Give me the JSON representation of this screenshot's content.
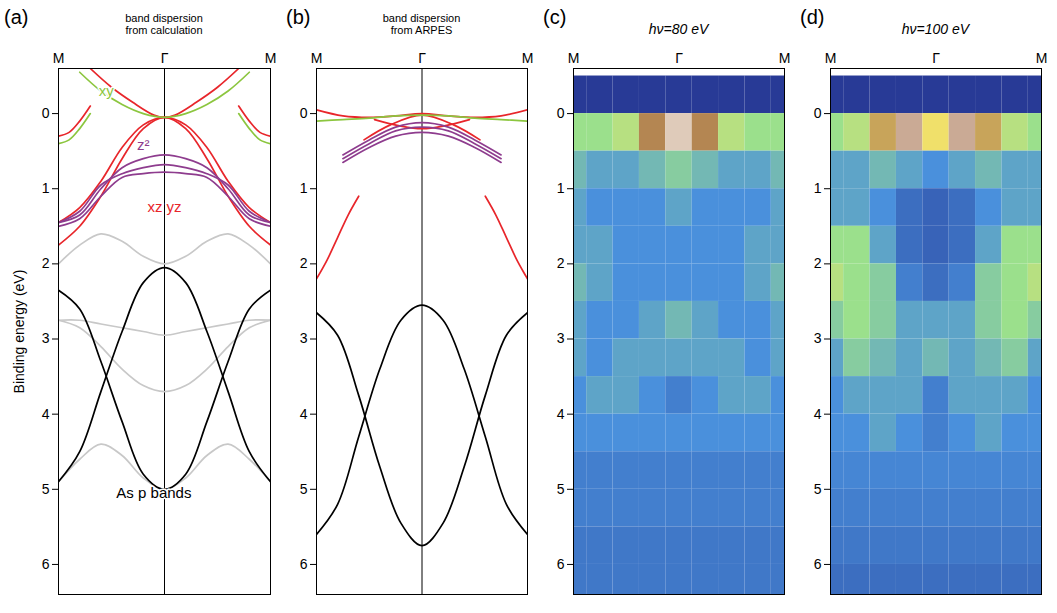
{
  "chart_data": [
    {
      "type": "line",
      "panel_label": "(a)",
      "title": "band dispersion from calculation",
      "xlim": [
        -1,
        1
      ],
      "xticks": [
        {
          "value": -1,
          "label": "M"
        },
        {
          "value": 0,
          "label": "Γ"
        },
        {
          "value": 1,
          "label": "M"
        }
      ],
      "ylim": [
        -0.6,
        6.4
      ],
      "yticks": [
        0,
        1,
        2,
        3,
        4,
        5,
        6
      ],
      "y_label": "Binding energy (eV)",
      "series": [
        {
          "color": "#e8262b",
          "x": [
            -1,
            -0.8,
            -0.6,
            -0.4,
            -0.2,
            0,
            0.2,
            0.4,
            0.6,
            0.8,
            1
          ],
          "values": [
            1.75,
            1.5,
            1.1,
            0.6,
            0.2,
            0.05,
            0.2,
            0.6,
            1.1,
            1.5,
            1.75
          ]
        },
        {
          "color": "#e8262b",
          "x": [
            -1,
            -0.8,
            -0.6,
            -0.4,
            -0.2,
            0,
            0.2,
            0.4,
            0.6,
            0.8,
            1
          ],
          "values": [
            1.45,
            1.25,
            0.9,
            0.45,
            0.15,
            0.05,
            0.15,
            0.45,
            0.9,
            1.25,
            1.45
          ]
        },
        {
          "color": "#e8262b",
          "x": [
            -0.7,
            -0.5,
            -0.3,
            -0.1,
            0,
            0.1,
            0.3,
            0.5,
            0.7
          ],
          "values": [
            -0.6,
            -0.35,
            -0.15,
            0.02,
            0.05,
            0.02,
            -0.15,
            -0.35,
            -0.6
          ]
        },
        {
          "color": "#e8262b",
          "x": [
            -1,
            -0.9,
            -0.8,
            -0.7
          ],
          "values": [
            0.3,
            0.25,
            0.1,
            -0.1
          ]
        },
        {
          "color": "#e8262b",
          "x": [
            0.7,
            0.8,
            0.9,
            1
          ],
          "values": [
            -0.1,
            0.1,
            0.25,
            0.3
          ]
        },
        {
          "color": "#8cc63f",
          "x": [
            -0.8,
            -0.6,
            -0.4,
            -0.2,
            0,
            0.2,
            0.4,
            0.6,
            0.8
          ],
          "values": [
            -0.55,
            -0.3,
            -0.12,
            0.0,
            0.05,
            0.0,
            -0.12,
            -0.3,
            -0.55
          ]
        },
        {
          "color": "#8cc63f",
          "x": [
            -1,
            -0.9,
            -0.8,
            -0.7
          ],
          "values": [
            0.4,
            0.35,
            0.2,
            0.0
          ]
        },
        {
          "color": "#8cc63f",
          "x": [
            0.7,
            0.8,
            0.9,
            1
          ],
          "values": [
            0.0,
            0.2,
            0.35,
            0.4
          ]
        },
        {
          "color": "#8e3c8e",
          "x": [
            -1,
            -0.8,
            -0.6,
            -0.4,
            -0.2,
            0,
            0.2,
            0.4,
            0.6,
            0.8,
            1
          ],
          "values": [
            1.45,
            1.35,
            1.0,
            0.72,
            0.6,
            0.55,
            0.6,
            0.72,
            1.0,
            1.35,
            1.45
          ]
        },
        {
          "color": "#8e3c8e",
          "x": [
            -1,
            -0.8,
            -0.6,
            -0.4,
            -0.2,
            0,
            0.2,
            0.4,
            0.6,
            0.8,
            1
          ],
          "values": [
            1.45,
            1.3,
            0.95,
            0.8,
            0.72,
            0.68,
            0.72,
            0.8,
            0.95,
            1.3,
            1.45
          ]
        },
        {
          "color": "#8e3c8e",
          "x": [
            -1,
            -0.8,
            -0.6,
            -0.4,
            -0.2,
            0,
            0.2,
            0.4,
            0.6,
            0.8,
            1
          ],
          "values": [
            1.5,
            1.4,
            1.1,
            0.85,
            0.8,
            0.78,
            0.8,
            0.85,
            1.1,
            1.4,
            1.5
          ]
        },
        {
          "color": "#c8c8c8",
          "x": [
            -1,
            -0.8,
            -0.6,
            -0.4,
            -0.2,
            0,
            0.2,
            0.4,
            0.6,
            0.8,
            1
          ],
          "values": [
            2.0,
            1.75,
            1.6,
            1.7,
            1.9,
            2.0,
            1.9,
            1.7,
            1.6,
            1.75,
            2.0
          ]
        },
        {
          "color": "#c8c8c8",
          "x": [
            -1,
            -0.8,
            -0.6,
            -0.4,
            -0.2,
            0,
            0.2,
            0.4,
            0.6,
            0.8,
            1
          ],
          "values": [
            2.75,
            2.75,
            2.8,
            2.85,
            2.9,
            2.95,
            2.9,
            2.85,
            2.8,
            2.75,
            2.75
          ]
        },
        {
          "color": "#c8c8c8",
          "x": [
            -1,
            -0.8,
            -0.6,
            -0.4,
            -0.2,
            0,
            0.2,
            0.4,
            0.6,
            0.8,
            1
          ],
          "values": [
            2.75,
            2.85,
            3.1,
            3.4,
            3.62,
            3.7,
            3.62,
            3.4,
            3.1,
            2.85,
            2.75
          ]
        },
        {
          "color": "#c8c8c8",
          "x": [
            -1,
            -0.8,
            -0.6,
            -0.4,
            -0.2,
            0,
            0.2,
            0.4,
            0.6,
            0.8,
            1
          ],
          "values": [
            4.9,
            4.6,
            4.4,
            4.55,
            4.85,
            5.0,
            4.85,
            4.55,
            4.4,
            4.6,
            4.9
          ]
        },
        {
          "color": "#000000",
          "x": [
            -1,
            -0.8,
            -0.6,
            -0.4,
            -0.2,
            0,
            0.2,
            0.4,
            0.6,
            0.8,
            1
          ],
          "values": [
            4.9,
            4.5,
            3.7,
            2.9,
            2.25,
            2.05,
            2.25,
            2.9,
            3.7,
            4.5,
            4.9
          ]
        },
        {
          "color": "#000000",
          "x": [
            -1,
            -0.8,
            -0.6,
            -0.4,
            -0.2,
            0,
            0.2,
            0.4,
            0.6,
            0.8,
            1
          ],
          "values": [
            2.35,
            2.6,
            3.3,
            4.1,
            4.8,
            5.0,
            4.8,
            4.1,
            3.3,
            2.6,
            2.35
          ]
        }
      ],
      "annotations": [
        {
          "text": "xy",
          "x": -0.55,
          "y": -0.3,
          "color": "#8cc63f"
        },
        {
          "text": "z²",
          "x": -0.2,
          "y": 0.42,
          "color": "#8e3c8e"
        },
        {
          "text": "xz yz",
          "x": 0,
          "y": 1.25,
          "color": "#e8262b"
        },
        {
          "text": "As p bands",
          "x": -0.1,
          "y": 5.05,
          "color": "#000000"
        }
      ]
    },
    {
      "type": "line",
      "panel_label": "(b)",
      "title": "band dispersion from ARPES",
      "xlim": [
        -1,
        1
      ],
      "xticks": [
        {
          "value": -1,
          "label": "M"
        },
        {
          "value": 0,
          "label": "Γ"
        },
        {
          "value": 1,
          "label": "M"
        }
      ],
      "ylim": [
        -0.6,
        6.4
      ],
      "yticks": [
        0,
        1,
        2,
        3,
        4,
        5,
        6
      ],
      "series": [
        {
          "color": "#e8262b",
          "x": [
            -1,
            -0.75,
            -0.5,
            -0.25,
            0,
            0.25,
            0.5,
            0.75,
            1
          ],
          "values": [
            -0.05,
            0.03,
            0.05,
            0.03,
            0,
            0.03,
            0.05,
            0.03,
            -0.05
          ]
        },
        {
          "color": "#e8262b",
          "x": [
            -0.55,
            -0.3,
            0,
            0.3,
            0.55
          ],
          "values": [
            0.35,
            0.15,
            0.02,
            0.15,
            0.35
          ]
        },
        {
          "color": "#e8262b",
          "x": [
            -0.45,
            0,
            0.45
          ],
          "values": [
            0.08,
            0.2,
            0.08
          ]
        },
        {
          "color": "#e8262b",
          "x": [
            -1,
            -0.9,
            -0.8,
            -0.7,
            -0.6
          ],
          "values": [
            2.2,
            1.95,
            1.65,
            1.35,
            1.1
          ]
        },
        {
          "color": "#e8262b",
          "x": [
            0.6,
            0.7,
            0.8,
            0.9,
            1
          ],
          "values": [
            1.1,
            1.35,
            1.65,
            1.95,
            2.2
          ]
        },
        {
          "color": "#8cc63f",
          "x": [
            -1,
            -0.75,
            -0.5,
            -0.25,
            0,
            0.25,
            0.5,
            0.75,
            1
          ],
          "values": [
            0.1,
            0.08,
            0.06,
            0.03,
            0.02,
            0.03,
            0.06,
            0.08,
            0.1
          ]
        },
        {
          "color": "#8e3c8e",
          "x": [
            -0.75,
            -0.5,
            -0.25,
            0,
            0.25,
            0.5,
            0.75
          ],
          "values": [
            0.65,
            0.45,
            0.3,
            0.25,
            0.3,
            0.45,
            0.65
          ]
        },
        {
          "color": "#8e3c8e",
          "x": [
            -0.75,
            -0.5,
            -0.25,
            0,
            0.25,
            0.5,
            0.75
          ],
          "values": [
            0.6,
            0.4,
            0.23,
            0.18,
            0.23,
            0.4,
            0.6
          ]
        },
        {
          "color": "#8e3c8e",
          "x": [
            -0.75,
            -0.5,
            -0.25,
            0,
            0.25,
            0.5,
            0.75
          ],
          "values": [
            0.55,
            0.35,
            0.18,
            0.12,
            0.18,
            0.35,
            0.55
          ]
        },
        {
          "color": "#000000",
          "x": [
            -1,
            -0.8,
            -0.6,
            -0.4,
            -0.2,
            0,
            0.2,
            0.4,
            0.6,
            0.8,
            1
          ],
          "values": [
            5.6,
            5.2,
            4.3,
            3.4,
            2.75,
            2.55,
            2.75,
            3.4,
            4.3,
            5.2,
            5.6
          ]
        },
        {
          "color": "#000000",
          "x": [
            -1,
            -0.8,
            -0.6,
            -0.4,
            -0.2,
            0,
            0.2,
            0.4,
            0.6,
            0.8,
            1
          ],
          "values": [
            2.65,
            2.95,
            3.75,
            4.7,
            5.45,
            5.75,
            5.45,
            4.7,
            3.75,
            2.95,
            2.65
          ]
        }
      ]
    },
    {
      "type": "heatmap",
      "panel_label": "(c)",
      "title": "hν=80 eV",
      "xlim": [
        -1,
        1
      ],
      "xticks": [
        {
          "value": -1,
          "label": "M"
        },
        {
          "value": 0,
          "label": "Γ"
        },
        {
          "value": 1,
          "label": "M"
        }
      ],
      "ylim": [
        -0.6,
        6.4
      ],
      "yticks": [
        0,
        1,
        2,
        3,
        4,
        5,
        6
      ],
      "zlim": [
        0,
        1
      ],
      "x": [
        -1,
        -0.75,
        -0.5,
        -0.25,
        0,
        0.25,
        0.5,
        0.75,
        1
      ],
      "y": [
        -0.25,
        0.25,
        0.75,
        1.25,
        1.75,
        2.25,
        2.75,
        3.25,
        3.75,
        4.25,
        4.75,
        5.25,
        5.75,
        6.25
      ],
      "z": [
        [
          0,
          0,
          0,
          0,
          0,
          0,
          0,
          0,
          0
        ],
        [
          0.45,
          0.45,
          0.5,
          0.75,
          0.95,
          0.75,
          0.5,
          0.45,
          0.45
        ],
        [
          0.35,
          0.3,
          0.3,
          0.35,
          0.4,
          0.35,
          0.3,
          0.3,
          0.35
        ],
        [
          0.3,
          0.25,
          0.25,
          0.25,
          0.3,
          0.25,
          0.25,
          0.25,
          0.3
        ],
        [
          0.3,
          0.3,
          0.25,
          0.25,
          0.25,
          0.25,
          0.25,
          0.3,
          0.3
        ],
        [
          0.35,
          0.3,
          0.25,
          0.25,
          0.25,
          0.25,
          0.25,
          0.3,
          0.35
        ],
        [
          0.3,
          0.25,
          0.25,
          0.3,
          0.35,
          0.3,
          0.25,
          0.25,
          0.3
        ],
        [
          0.3,
          0.25,
          0.3,
          0.3,
          0.3,
          0.3,
          0.3,
          0.25,
          0.3
        ],
        [
          0.25,
          0.3,
          0.3,
          0.25,
          0.2,
          0.25,
          0.3,
          0.3,
          0.25
        ],
        [
          0.25,
          0.25,
          0.25,
          0.25,
          0.25,
          0.25,
          0.25,
          0.25,
          0.25
        ],
        [
          0.2,
          0.2,
          0.2,
          0.2,
          0.2,
          0.2,
          0.2,
          0.2,
          0.2
        ],
        [
          0.2,
          0.2,
          0.2,
          0.2,
          0.2,
          0.2,
          0.2,
          0.2,
          0.2
        ],
        [
          0.18,
          0.18,
          0.18,
          0.18,
          0.18,
          0.18,
          0.18,
          0.18,
          0.18
        ],
        [
          0.18,
          0.18,
          0.18,
          0.18,
          0.18,
          0.18,
          0.18,
          0.18,
          0.18
        ]
      ]
    },
    {
      "type": "heatmap",
      "panel_label": "(d)",
      "title": "hν=100 eV",
      "xlim": [
        -1,
        1
      ],
      "xticks": [
        {
          "value": -1,
          "label": "M"
        },
        {
          "value": 0,
          "label": "Γ"
        },
        {
          "value": 1,
          "label": "M"
        }
      ],
      "ylim": [
        -0.6,
        6.4
      ],
      "yticks": [
        0,
        1,
        2,
        3,
        4,
        5,
        6
      ],
      "zlim": [
        0,
        1
      ],
      "x": [
        -1,
        -0.75,
        -0.5,
        -0.25,
        0,
        0.25,
        0.5,
        0.75,
        1
      ],
      "y": [
        -0.25,
        0.25,
        0.75,
        1.25,
        1.75,
        2.25,
        2.75,
        3.25,
        3.75,
        4.25,
        4.75,
        5.25,
        5.75,
        6.25
      ],
      "z": [
        [
          0,
          0,
          0,
          0,
          0,
          0,
          0,
          0,
          0
        ],
        [
          0.45,
          0.5,
          0.7,
          0.9,
          0.6,
          0.9,
          0.7,
          0.5,
          0.45
        ],
        [
          0.3,
          0.3,
          0.35,
          0.3,
          0.25,
          0.3,
          0.35,
          0.3,
          0.3
        ],
        [
          0.3,
          0.3,
          0.25,
          0.15,
          0.12,
          0.15,
          0.25,
          0.3,
          0.3
        ],
        [
          0.45,
          0.45,
          0.3,
          0.15,
          0.12,
          0.15,
          0.3,
          0.45,
          0.45
        ],
        [
          0.5,
          0.45,
          0.4,
          0.2,
          0.15,
          0.2,
          0.4,
          0.45,
          0.5
        ],
        [
          0.4,
          0.45,
          0.4,
          0.3,
          0.3,
          0.3,
          0.4,
          0.45,
          0.4
        ],
        [
          0.3,
          0.4,
          0.35,
          0.3,
          0.35,
          0.3,
          0.35,
          0.4,
          0.3
        ],
        [
          0.25,
          0.3,
          0.3,
          0.3,
          0.2,
          0.3,
          0.3,
          0.3,
          0.25
        ],
        [
          0.25,
          0.25,
          0.3,
          0.25,
          0.2,
          0.25,
          0.3,
          0.25,
          0.25
        ],
        [
          0.22,
          0.22,
          0.22,
          0.22,
          0.22,
          0.22,
          0.22,
          0.22,
          0.22
        ],
        [
          0.2,
          0.2,
          0.2,
          0.2,
          0.2,
          0.2,
          0.2,
          0.2,
          0.2
        ],
        [
          0.18,
          0.18,
          0.18,
          0.18,
          0.18,
          0.18,
          0.18,
          0.18,
          0.18
        ],
        [
          0.15,
          0.15,
          0.15,
          0.15,
          0.15,
          0.15,
          0.15,
          0.15,
          0.15
        ]
      ]
    }
  ]
}
